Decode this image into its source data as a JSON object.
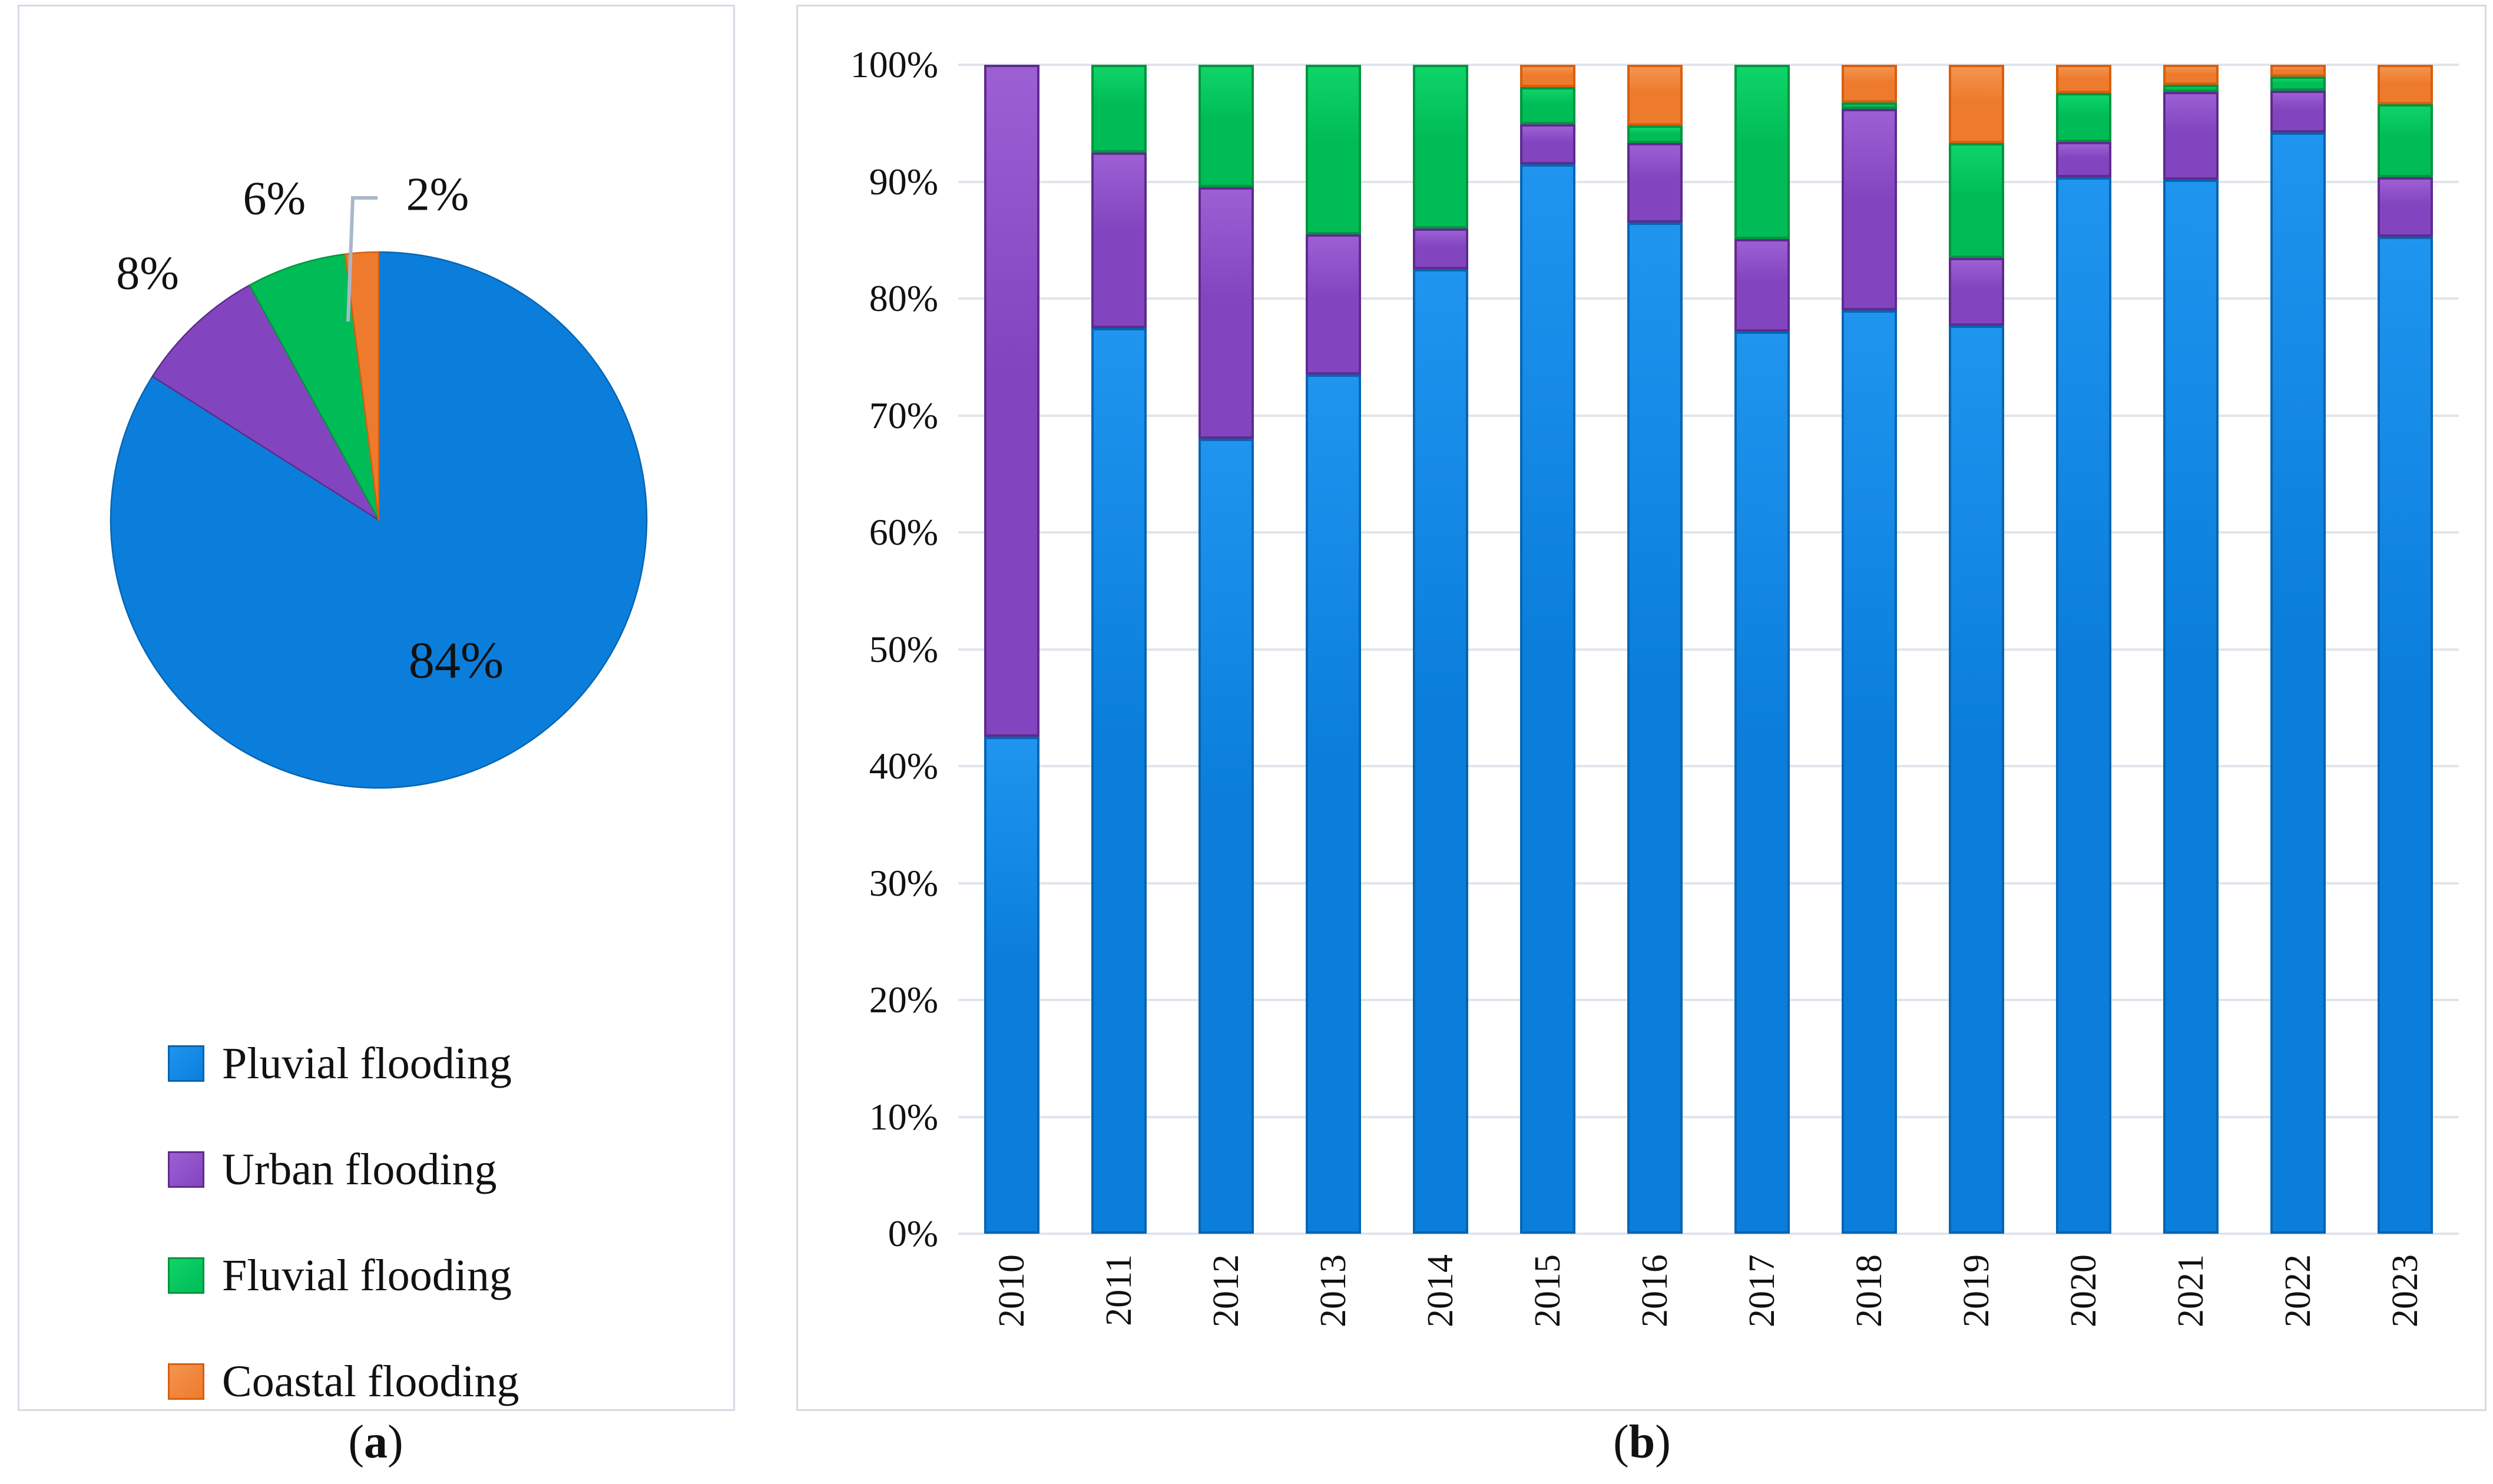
{
  "colors": {
    "pluvial": "#0b7edc",
    "pluvial_light": "#1f95ef",
    "pluvial_dark": "#0665b1",
    "urban": "#8345bf",
    "urban_light": "#9d5fd3",
    "urban_dark": "#5e2b8e",
    "fluvial": "#00bc57",
    "fluvial_light": "#0fd468",
    "fluvial_dark": "#00953f",
    "coastal": "#ee7b2d",
    "coastal_light": "#f3944f",
    "coastal_dark": "#d85f0e",
    "gridline": "#e0e4ec",
    "panel_border": "#d5dbe4",
    "leader_line": "#a9b7c9",
    "text": "#111111"
  },
  "captions": {
    "open": "(",
    "a": "a",
    "b": "b",
    "close": ")"
  },
  "legend": {
    "items": [
      {
        "label": "Pluvial flooding",
        "color_key": "pluvial"
      },
      {
        "label": "Urban flooding",
        "color_key": "urban"
      },
      {
        "label": "Fluvial flooding",
        "color_key": "fluvial"
      },
      {
        "label": "Coastal flooding",
        "color_key": "coastal"
      }
    ]
  },
  "chart_data": [
    {
      "type": "pie",
      "title": "",
      "direction": "clockwise_from_top",
      "slices": [
        {
          "label": "Pluvial flooding",
          "value": 84,
          "display": "84%",
          "color_key": "pluvial"
        },
        {
          "label": "Urban flooding",
          "value": 8,
          "display": "8%",
          "color_key": "urban"
        },
        {
          "label": "Fluvial flooding",
          "value": 6,
          "display": "6%",
          "color_key": "fluvial"
        },
        {
          "label": "Coastal flooding",
          "value": 2,
          "display": "2%",
          "color_key": "coastal"
        }
      ],
      "legend_position": "below"
    },
    {
      "type": "bar",
      "subtype": "stacked_100_percent",
      "categories": [
        "2010",
        "2011",
        "2012",
        "2013",
        "2014",
        "2015",
        "2016",
        "2017",
        "2018",
        "2019",
        "2020",
        "2021",
        "2022",
        "2023"
      ],
      "series": [
        {
          "name": "Pluvial flooding",
          "color_key": "pluvial",
          "values": [
            42.5,
            77.5,
            68.0,
            73.5,
            82.5,
            91.5,
            86.5,
            77.2,
            79.0,
            77.7,
            90.4,
            90.2,
            94.2,
            85.3
          ]
        },
        {
          "name": "Urban flooding",
          "color_key": "urban",
          "values": [
            57.5,
            15.0,
            21.5,
            12.0,
            3.5,
            3.4,
            6.8,
            7.9,
            17.2,
            5.8,
            3.0,
            7.5,
            3.6,
            5.1
          ]
        },
        {
          "name": "Fluvial flooding",
          "color_key": "fluvial",
          "values": [
            0,
            7.5,
            10.5,
            14.5,
            14.0,
            3.2,
            1.5,
            14.9,
            0.6,
            9.8,
            4.2,
            0.6,
            1.2,
            6.2
          ]
        },
        {
          "name": "Coastal flooding",
          "color_key": "coastal",
          "values": [
            0,
            0,
            0,
            0,
            0,
            1.9,
            5.2,
            0,
            3.2,
            6.7,
            2.4,
            1.7,
            1.0,
            3.4
          ]
        }
      ],
      "y_ticks": [
        "0%",
        "10%",
        "20%",
        "30%",
        "40%",
        "50%",
        "60%",
        "70%",
        "80%",
        "90%",
        "100%"
      ],
      "ylim": [
        0,
        100
      ],
      "grid": true,
      "xlabel": "",
      "ylabel": ""
    }
  ]
}
